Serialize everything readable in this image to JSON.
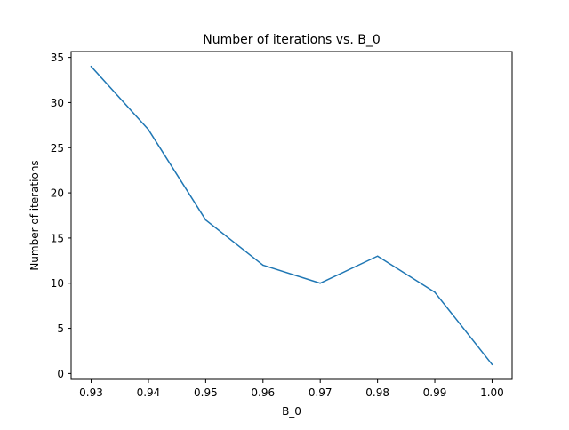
{
  "chart_data": {
    "type": "line",
    "title": "Number of iterations vs. B_0",
    "xlabel": "B_0",
    "ylabel": "Number of iterations",
    "x": [
      0.93,
      0.94,
      0.95,
      0.96,
      0.97,
      0.98,
      0.99,
      1.0
    ],
    "series": [
      {
        "values": [
          34,
          27,
          17,
          12,
          10,
          13,
          9,
          1
        ],
        "color": "#1f77b4"
      }
    ],
    "xlim": [
      0.9265,
      1.0035
    ],
    "ylim": [
      -0.65,
      35.65
    ],
    "xticks": [
      0.93,
      0.94,
      0.95,
      0.96,
      0.97,
      0.98,
      0.99,
      1.0
    ],
    "xtick_labels": [
      "0.93",
      "0.94",
      "0.95",
      "0.96",
      "0.97",
      "0.98",
      "0.99",
      "1.00"
    ],
    "yticks": [
      0,
      5,
      10,
      15,
      20,
      25,
      30,
      35
    ],
    "ytick_labels": [
      "0",
      "5",
      "10",
      "15",
      "20",
      "25",
      "30",
      "35"
    ],
    "grid": false,
    "legend": false
  }
}
